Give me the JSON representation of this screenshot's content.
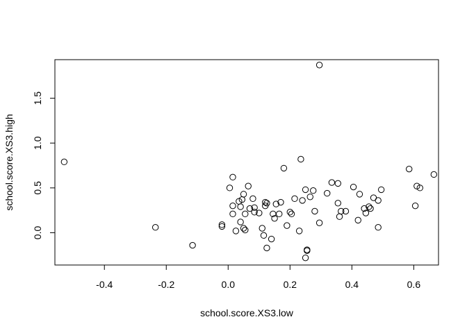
{
  "chart_data": {
    "type": "scatter",
    "title": "",
    "xlabel": "school.score.XS3.low",
    "ylabel": "school.score.XS3.high",
    "xlim": [
      -0.56,
      0.68
    ],
    "ylim": [
      -0.36,
      1.93
    ],
    "x_ticks": [
      -0.4,
      -0.2,
      0.0,
      0.2,
      0.4,
      0.6
    ],
    "x_tick_labels": [
      "-0.4",
      "-0.2",
      "0.0",
      "0.2",
      "0.4",
      "0.6"
    ],
    "y_ticks": [
      0.0,
      0.5,
      1.0,
      1.5
    ],
    "y_tick_labels": [
      "0.0",
      "0.5",
      "1.0",
      "1.5"
    ],
    "grid": false,
    "legend": "none",
    "marker": "open-circle",
    "colors": {
      "marker": "#000000",
      "axes": "#000000",
      "background": "#ffffff"
    },
    "points": [
      {
        "x": -0.53,
        "y": 0.79
      },
      {
        "x": -0.235,
        "y": 0.06
      },
      {
        "x": -0.115,
        "y": -0.14
      },
      {
        "x": -0.02,
        "y": 0.07
      },
      {
        "x": -0.02,
        "y": 0.09
      },
      {
        "x": 0.005,
        "y": 0.5
      },
      {
        "x": 0.015,
        "y": 0.62
      },
      {
        "x": 0.015,
        "y": 0.21
      },
      {
        "x": 0.015,
        "y": 0.3
      },
      {
        "x": 0.025,
        "y": 0.02
      },
      {
        "x": 0.035,
        "y": 0.35
      },
      {
        "x": 0.04,
        "y": 0.12
      },
      {
        "x": 0.04,
        "y": 0.29
      },
      {
        "x": 0.045,
        "y": 0.37
      },
      {
        "x": 0.05,
        "y": 0.43
      },
      {
        "x": 0.05,
        "y": 0.05
      },
      {
        "x": 0.055,
        "y": 0.03
      },
      {
        "x": 0.055,
        "y": 0.21
      },
      {
        "x": 0.065,
        "y": 0.52
      },
      {
        "x": 0.07,
        "y": 0.27
      },
      {
        "x": 0.08,
        "y": 0.38
      },
      {
        "x": 0.085,
        "y": 0.28
      },
      {
        "x": 0.085,
        "y": 0.23
      },
      {
        "x": 0.1,
        "y": 0.22
      },
      {
        "x": 0.11,
        "y": 0.05
      },
      {
        "x": 0.115,
        "y": -0.03
      },
      {
        "x": 0.12,
        "y": 0.3
      },
      {
        "x": 0.12,
        "y": 0.34
      },
      {
        "x": 0.125,
        "y": 0.33
      },
      {
        "x": 0.125,
        "y": -0.17
      },
      {
        "x": 0.14,
        "y": -0.07
      },
      {
        "x": 0.145,
        "y": 0.21
      },
      {
        "x": 0.15,
        "y": 0.16
      },
      {
        "x": 0.155,
        "y": 0.32
      },
      {
        "x": 0.165,
        "y": 0.21
      },
      {
        "x": 0.17,
        "y": 0.34
      },
      {
        "x": 0.18,
        "y": 0.72
      },
      {
        "x": 0.19,
        "y": 0.08
      },
      {
        "x": 0.2,
        "y": 0.23
      },
      {
        "x": 0.205,
        "y": 0.21
      },
      {
        "x": 0.215,
        "y": 0.38
      },
      {
        "x": 0.23,
        "y": 0.02
      },
      {
        "x": 0.235,
        "y": 0.82
      },
      {
        "x": 0.24,
        "y": 0.36
      },
      {
        "x": 0.25,
        "y": 0.48
      },
      {
        "x": 0.255,
        "y": -0.19
      },
      {
        "x": 0.255,
        "y": -0.2
      },
      {
        "x": 0.25,
        "y": -0.28
      },
      {
        "x": 0.265,
        "y": 0.4
      },
      {
        "x": 0.275,
        "y": 0.47
      },
      {
        "x": 0.28,
        "y": 0.24
      },
      {
        "x": 0.295,
        "y": 1.87
      },
      {
        "x": 0.295,
        "y": 0.11
      },
      {
        "x": 0.32,
        "y": 0.44
      },
      {
        "x": 0.335,
        "y": 0.56
      },
      {
        "x": 0.355,
        "y": 0.55
      },
      {
        "x": 0.355,
        "y": 0.33
      },
      {
        "x": 0.36,
        "y": 0.18
      },
      {
        "x": 0.365,
        "y": 0.24
      },
      {
        "x": 0.38,
        "y": 0.24
      },
      {
        "x": 0.405,
        "y": 0.51
      },
      {
        "x": 0.42,
        "y": 0.14
      },
      {
        "x": 0.425,
        "y": 0.43
      },
      {
        "x": 0.44,
        "y": 0.27
      },
      {
        "x": 0.445,
        "y": 0.22
      },
      {
        "x": 0.455,
        "y": 0.29
      },
      {
        "x": 0.46,
        "y": 0.27
      },
      {
        "x": 0.47,
        "y": 0.39
      },
      {
        "x": 0.485,
        "y": 0.06
      },
      {
        "x": 0.485,
        "y": 0.36
      },
      {
        "x": 0.495,
        "y": 0.48
      },
      {
        "x": 0.585,
        "y": 0.71
      },
      {
        "x": 0.605,
        "y": 0.3
      },
      {
        "x": 0.61,
        "y": 0.52
      },
      {
        "x": 0.62,
        "y": 0.5
      },
      {
        "x": 0.665,
        "y": 0.65
      }
    ]
  }
}
